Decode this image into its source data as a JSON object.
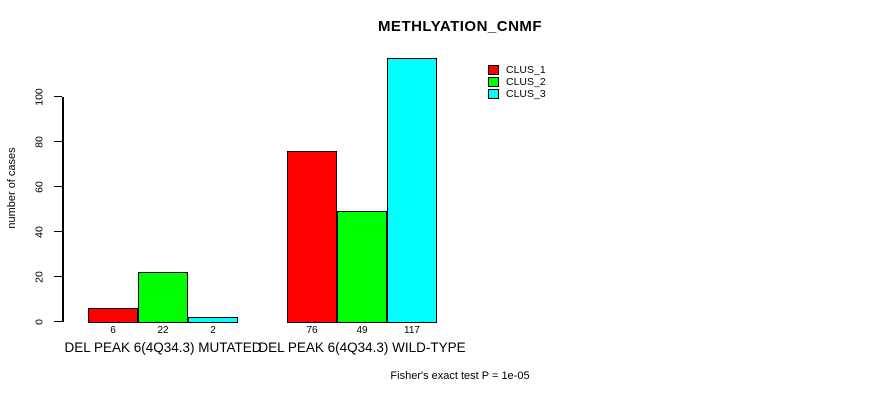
{
  "chart_data": {
    "type": "bar",
    "title": "METHLYATION_CNMF",
    "ylabel": "number of cases",
    "xlabel": "",
    "yticks": [
      0,
      20,
      40,
      60,
      80,
      100
    ],
    "ylim": [
      0,
      117
    ],
    "grid": false,
    "legend_position": "top-right",
    "categories": [
      "DEL PEAK  6(4Q34.3) MUTATED",
      "DEL PEAK  6(4Q34.3) WILD-TYPE"
    ],
    "series": [
      {
        "name": "CLUS_1",
        "color": "#ff0000",
        "values": [
          6,
          76
        ]
      },
      {
        "name": "CLUS_2",
        "color": "#00ff00",
        "values": [
          22,
          49
        ]
      },
      {
        "name": "CLUS_3",
        "color": "#00ffff",
        "values": [
          2,
          117
        ]
      }
    ],
    "bar_value_labels": [
      [
        6,
        22,
        2
      ],
      [
        76,
        49,
        117
      ]
    ],
    "annotation": "Fisher's exact test P = 1e-05"
  },
  "colors": {
    "axis": "#000000",
    "text": "#000000",
    "background": "#ffffff"
  }
}
